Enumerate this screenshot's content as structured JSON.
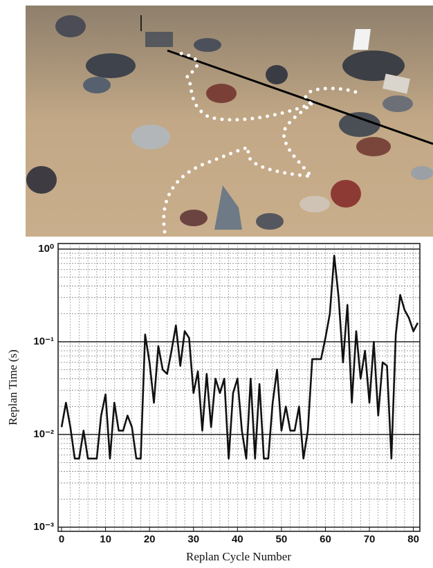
{
  "chart_data": {
    "type": "line",
    "log_y": true,
    "grid": true,
    "color": "#111111",
    "xlabel": "Replan Cycle Number",
    "ylabel": "Replan Time (s)",
    "x": [
      0,
      1,
      2,
      3,
      4,
      5,
      6,
      7,
      8,
      9,
      10,
      11,
      12,
      13,
      14,
      15,
      16,
      17,
      18,
      19,
      20,
      21,
      22,
      23,
      24,
      25,
      26,
      27,
      28,
      29,
      30,
      31,
      32,
      33,
      34,
      35,
      36,
      37,
      38,
      39,
      40,
      41,
      42,
      43,
      44,
      45,
      46,
      47,
      48,
      49,
      50,
      51,
      52,
      53,
      54,
      55,
      56,
      57,
      58,
      59,
      60,
      61,
      62,
      63,
      64,
      65,
      66,
      67,
      68,
      69,
      70,
      71,
      72,
      73,
      74,
      75,
      76,
      77,
      78,
      79,
      80,
      81
    ],
    "values": [
      0.012,
      0.022,
      0.012,
      0.0055,
      0.0055,
      0.011,
      0.0055,
      0.0055,
      0.0055,
      0.016,
      0.027,
      0.0055,
      0.022,
      0.011,
      0.011,
      0.016,
      0.012,
      0.0055,
      0.0055,
      0.12,
      0.06,
      0.022,
      0.09,
      0.05,
      0.045,
      0.08,
      0.15,
      0.055,
      0.13,
      0.11,
      0.028,
      0.048,
      0.011,
      0.045,
      0.012,
      0.04,
      0.028,
      0.04,
      0.0055,
      0.028,
      0.04,
      0.011,
      0.0055,
      0.04,
      0.0055,
      0.035,
      0.0055,
      0.0055,
      0.022,
      0.05,
      0.011,
      0.02,
      0.011,
      0.011,
      0.02,
      0.0055,
      0.011,
      0.065,
      0.065,
      0.065,
      0.11,
      0.2,
      0.85,
      0.3,
      0.06,
      0.25,
      0.022,
      0.13,
      0.04,
      0.08,
      0.022,
      0.1,
      0.016,
      0.06,
      0.055,
      0.0055,
      0.12,
      0.32,
      0.22,
      0.18,
      0.13,
      0.16
    ],
    "xlim": [
      0,
      81
    ],
    "xticks": [
      0,
      10,
      20,
      30,
      40,
      50,
      60,
      70,
      80
    ],
    "ylim": [
      0.001,
      1
    ],
    "yticks": [
      {
        "value": 0.001,
        "label": "10⁻³"
      },
      {
        "value": 0.01,
        "label": "10⁻²"
      },
      {
        "value": 0.1,
        "label": "10⁻¹"
      },
      {
        "value": 1,
        "label": "10⁰"
      }
    ]
  }
}
